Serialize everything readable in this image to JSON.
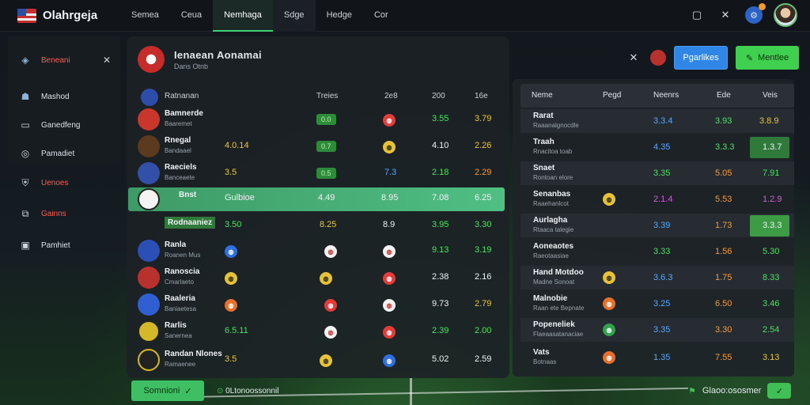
{
  "app": {
    "title": "Olahrgeja"
  },
  "tabs": [
    "Semea",
    "Ceua",
    "Nemhaga",
    "Sdge",
    "Hedge",
    "Cor"
  ],
  "sidebar": {
    "top": {
      "label": "Beneani"
    },
    "items": [
      {
        "label": "Mashod",
        "icon": "person-icon"
      },
      {
        "label": "Ganedfeng",
        "icon": "monitor-icon"
      },
      {
        "label": "Pamadiet",
        "icon": "compass-icon"
      }
    ],
    "lower": [
      {
        "label": "Uenoes",
        "icon": "shield-icon",
        "red": true
      },
      {
        "label": "Gainns",
        "icon": "chart-icon",
        "red": true
      },
      {
        "label": "Pamhiet",
        "icon": "square-icon",
        "red": false
      }
    ]
  },
  "main": {
    "team_title": "Ienaean Aonamai",
    "team_subtitle": "Dans Otnb",
    "header": {
      "name": "Ratnanan",
      "c1": "Treies",
      "c2": "2e8",
      "c3": "200",
      "c4": "16e"
    },
    "rows": [
      {
        "name": "Bamnerde",
        "sub": "Baaremet",
        "a": "",
        "b": "0.0",
        "c": "0.0",
        "d": "3.55",
        "e": "3.79",
        "crest": "#c8362c"
      },
      {
        "name": "Rnegal",
        "sub": "Bandaael",
        "a": "4.0.14",
        "b": "0.7",
        "c": "0.0",
        "d": "4.10",
        "e": "2.26",
        "crest": "#5c3a20"
      },
      {
        "name": "Raeciels",
        "sub": "Banceaete",
        "a": "3.5",
        "b": "0.5",
        "c": "7.3",
        "d": "2.18",
        "e": "2.29",
        "crest": "#3250a8"
      },
      {
        "name": "Bnst",
        "sub": "Rodnaaniez",
        "a": "Gulbioe",
        "a2": "3.50",
        "b": "4.49",
        "c": "8.95",
        "d": "7.08",
        "e": "6.25",
        "crest": "#f4f4f4"
      },
      {
        "name": "",
        "sub": "",
        "a": "",
        "b": "8.25",
        "c": "8.9",
        "d": "3.95",
        "e": "3.30",
        "crest": ""
      },
      {
        "name": "Ranla",
        "sub": "Roanen Mus",
        "a": "",
        "b": "",
        "c": "",
        "d": "9.13",
        "e": "3.19",
        "crest": "#2b4fb5"
      },
      {
        "name": "Ranoscia",
        "sub": "Cmarlaeto",
        "a": "",
        "b": "",
        "c": "",
        "d": "2.38",
        "e": "2.16",
        "crest": "#b8312c"
      },
      {
        "name": "Raaleria",
        "sub": "Baniaetesa",
        "a": "",
        "b": "",
        "c": "",
        "d": "9.73",
        "e": "2.79",
        "crest": "#2f5fd0"
      },
      {
        "name": "Rarlis",
        "sub": "Sanernea",
        "a": "6.5.11",
        "b": "",
        "c": "",
        "d": "2.39",
        "e": "2.00",
        "crest": "#d4b82a"
      },
      {
        "name": "Randan Nlones",
        "sub": "Ramaenee",
        "a": "3.5",
        "b": "",
        "c": "",
        "d": "5.02",
        "e": "2.59",
        "crest": "#222222"
      }
    ]
  },
  "actions": {
    "pay_label": "Pgarlikes",
    "mentor_label": "Mentlee"
  },
  "right": {
    "header": {
      "c0": "Neme",
      "c1": "Pegd",
      "c2": "Neenrs",
      "c3": "Ede",
      "c4": "Veis"
    },
    "rows": [
      {
        "name": "Rarat",
        "sub": "Raaanalgnocdle",
        "v1": "3.3.4",
        "v2": "3.93",
        "v3": "",
        "v4": "3.8.9"
      },
      {
        "name": "Traah",
        "sub": "Rnacitoa toab",
        "v1": "4.35",
        "v2": "3.3.3",
        "v3": "",
        "v4": "1.3.7"
      },
      {
        "name": "Snaet",
        "sub": "Rontoan elore",
        "v1": "3.35",
        "v2": "5.05",
        "v3": "",
        "v4": "7.91"
      },
      {
        "name": "Senanbas",
        "sub": "Raaehanlcot",
        "v1": "2.1.4",
        "v2": "5.53",
        "v3": "",
        "v4": "1.2.9"
      },
      {
        "name": "Aurlagha",
        "sub": "Rtaaca talegie",
        "v1": "3.39",
        "v2": "1.73",
        "v3": "",
        "v4": "3.3.3"
      },
      {
        "name": "Aoneaotes",
        "sub": "Raeotaasiae",
        "v1": "3.33",
        "v2": "1.56",
        "v3": "",
        "v4": "5.30"
      },
      {
        "name": "Hand Motdoo",
        "sub": "Madne Sonoat",
        "v1": "3.6.3",
        "v2": "1.75",
        "v3": "",
        "v4": "8.33"
      },
      {
        "name": "Malnobie",
        "sub": "Raan ete Bepnate",
        "v1": "3.25",
        "v2": "6.50",
        "v3": "",
        "v4": "3.46"
      },
      {
        "name": "Popeneliek",
        "sub": "Flaeaasatanaciae",
        "v1": "3.35",
        "v2": "3.30",
        "v3": "",
        "v4": "2.54"
      },
      {
        "name": "Vats",
        "sub": "Botnaas",
        "v1": "1.35",
        "v2": "7.55",
        "v3": "",
        "v4": "3.13"
      }
    ]
  },
  "footer": {
    "button_label": "Somnioni",
    "status": "0Ltonoossonnil",
    "right_label": "Glaoo:ososmer"
  }
}
